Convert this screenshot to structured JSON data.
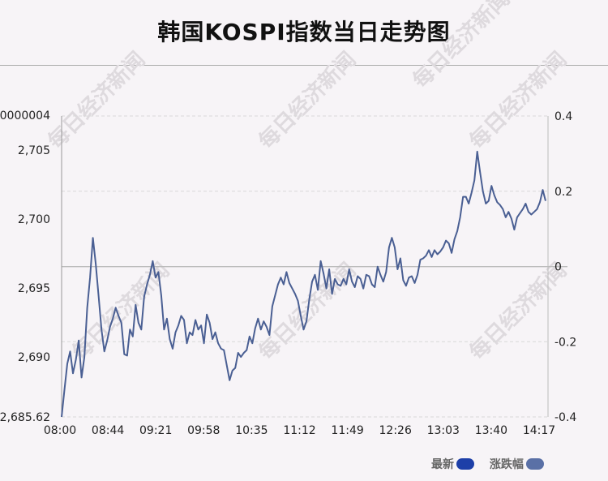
{
  "title": "韩国KOSPI指数当日走势图",
  "watermark": "每日经济新闻",
  "colors": {
    "latest": "#1d3fa8",
    "change": "#5a70a6",
    "line": "#4a5f93",
    "grid": "#d8d8d8"
  },
  "legend": {
    "latest": "最新",
    "change": "涨跌幅"
  },
  "chart_data": {
    "type": "line",
    "title": "韩国KOSPI指数当日走势图",
    "x_ticks": [
      "08:00",
      "08:44",
      "09:21",
      "09:58",
      "10:35",
      "11:12",
      "11:49",
      "12:26",
      "13:03",
      "13:40",
      "14:17"
    ],
    "y_left_ticks": [
      "2,685.62",
      "2,690",
      "2,695",
      "2,700",
      "2,705",
      "0000004"
    ],
    "y_left_range": [
      2685.62,
      2707.6
    ],
    "y_right_ticks": [
      "-0.4",
      "-0.2",
      "0",
      "0.2",
      "0.4"
    ],
    "y_right_range": [
      -0.4,
      0.4
    ],
    "reference_line": 2696.6,
    "grid": true,
    "series": [
      {
        "name": "最新",
        "x_start": "08:00",
        "x_end": "14:17",
        "values": [
          2685.62,
          2687.6,
          2689.5,
          2690.4,
          2688.8,
          2689.8,
          2691.2,
          2688.5,
          2690.0,
          2693.6,
          2695.8,
          2698.7,
          2696.8,
          2694.4,
          2692.0,
          2690.4,
          2691.2,
          2692.2,
          2692.8,
          2693.6,
          2693.0,
          2692.5,
          2690.2,
          2690.1,
          2692.0,
          2691.5,
          2693.8,
          2692.5,
          2692.0,
          2694.4,
          2695.3,
          2696.0,
          2697.0,
          2695.8,
          2696.2,
          2694.5,
          2692.0,
          2692.8,
          2691.3,
          2690.6,
          2691.8,
          2692.3,
          2693.0,
          2692.7,
          2691.0,
          2691.8,
          2691.6,
          2692.7,
          2692.0,
          2692.3,
          2691.0,
          2693.1,
          2692.5,
          2691.3,
          2691.8,
          2691.0,
          2690.6,
          2690.5,
          2689.4,
          2688.3,
          2689.0,
          2689.2,
          2690.3,
          2690.0,
          2690.3,
          2690.5,
          2691.5,
          2691.0,
          2692.1,
          2692.8,
          2692.0,
          2692.6,
          2692.2,
          2691.6,
          2693.7,
          2694.5,
          2695.3,
          2695.8,
          2695.3,
          2696.2,
          2695.4,
          2695.0,
          2694.6,
          2694.1,
          2693.0,
          2692.0,
          2692.6,
          2694.2,
          2695.5,
          2696.0,
          2694.9,
          2697.0,
          2696.1,
          2695.0,
          2696.4,
          2694.6,
          2695.7,
          2695.3,
          2695.2,
          2695.7,
          2695.3,
          2696.4,
          2695.5,
          2695.1,
          2695.9,
          2695.7,
          2695.0,
          2696.0,
          2695.9,
          2695.3,
          2695.1,
          2696.6,
          2696.0,
          2695.5,
          2696.2,
          2698.0,
          2698.7,
          2698.0,
          2696.4,
          2697.2,
          2695.6,
          2695.2,
          2695.8,
          2695.9,
          2695.4,
          2696.0,
          2697.1,
          2697.2,
          2697.4,
          2697.8,
          2697.3,
          2697.8,
          2697.5,
          2697.7,
          2698.0,
          2698.5,
          2698.3,
          2697.6,
          2698.6,
          2699.2,
          2700.2,
          2701.7,
          2701.7,
          2701.2,
          2702.0,
          2702.9,
          2705.0,
          2703.5,
          2702.1,
          2701.2,
          2701.4,
          2702.5,
          2701.8,
          2701.3,
          2701.1,
          2700.8,
          2700.2,
          2700.6,
          2700.1,
          2699.3,
          2700.2,
          2700.5,
          2700.8,
          2701.2,
          2700.6,
          2700.4,
          2700.6,
          2700.8,
          2701.3,
          2702.2,
          2701.4
        ]
      }
    ]
  }
}
